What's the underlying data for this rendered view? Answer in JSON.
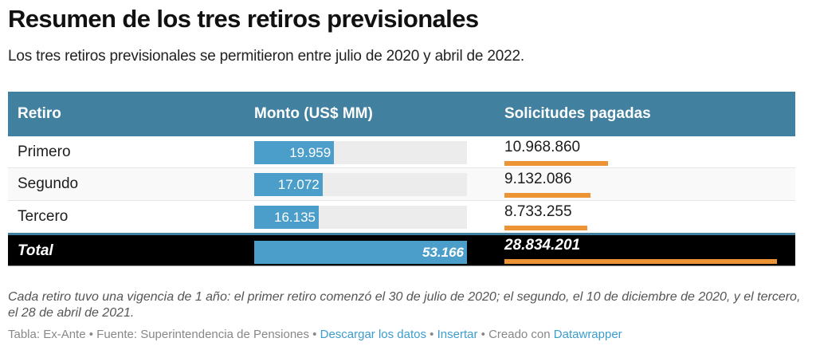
{
  "header": {
    "title": "Resumen de los tres retiros previsionales",
    "subtitle": "Los tres retiros previsionales se permitieron entre julio de 2020 y abril de 2022."
  },
  "table": {
    "columns": [
      "Retiro",
      "Monto (US$ MM)",
      "Solicitudes pagadas"
    ],
    "max_monto": 53166,
    "max_solicitudes": 28834201,
    "rows": [
      {
        "retiro": "Primero",
        "monto_label": "19.959",
        "monto": 19959,
        "solicitudes_label": "10.968.860",
        "solicitudes": 10968860
      },
      {
        "retiro": "Segundo",
        "monto_label": "17.072",
        "monto": 17072,
        "solicitudes_label": "9.132.086",
        "solicitudes": 9132086
      },
      {
        "retiro": "Tercero",
        "monto_label": "16.135",
        "monto": 16135,
        "solicitudes_label": "8.733.255",
        "solicitudes": 8733255
      }
    ],
    "total": {
      "retiro": "Total",
      "monto_label": "53.166",
      "monto": 53166,
      "solicitudes_label": "28.834.201",
      "solicitudes": 28834201
    }
  },
  "colors": {
    "header_bg": "#41819f",
    "monto_bar": "#4a9ec9",
    "solicitudes_bar": "#ec9336",
    "total_bg": "#000000",
    "link": "#3c9dcd"
  },
  "footer": {
    "note": "Cada retiro tuvo una vigencia de 1 año: el primer retiro comenzó el 30 de julio de 2020; el segundo, el 10 de diciembre de 2020, y el tercero, el 28 de abril de 2021.",
    "credit": "Tabla: Ex-Ante",
    "source": "Fuente: Superintendencia de Pensiones",
    "download_link": "Descargar los datos",
    "embed_link": "Insertar",
    "created_with": "Creado con",
    "datawrapper_link": "Datawrapper",
    "separator": " • "
  }
}
